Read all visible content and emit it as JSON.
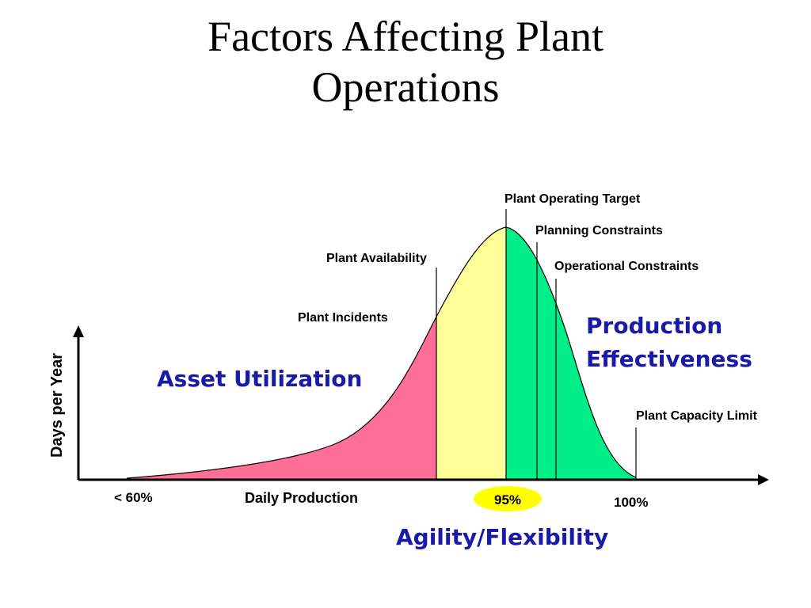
{
  "slide": {
    "title_line1": "Factors Affecting Plant",
    "title_line2": "Operations"
  },
  "labels": {
    "plant_operating_target": "Plant Operating Target",
    "planning_constraints": "Planning Constraints",
    "plant_availability": "Plant Availability",
    "operational_constraints": "Operational Constraints",
    "plant_incidents": "Plant Incidents",
    "production_effectiveness_line1": "Production",
    "production_effectiveness_line2": "Effectiveness",
    "asset_utilization": "Asset Utilization",
    "plant_capacity_limit": "Plant Capacity Limit",
    "y_axis": "Days per Year",
    "x_axis": "Daily Production",
    "tick_low": "< 60%",
    "tick_target": "95%",
    "tick_high": "100%",
    "agility_flexibility": "Agility/Flexibility"
  },
  "colors": {
    "asset_region": "#ff6e96",
    "availability_region": "#ffff99",
    "effectiveness_region": "#00ee88",
    "accent_text": "#1a1aa8",
    "target_highlight": "#ffff00"
  }
}
